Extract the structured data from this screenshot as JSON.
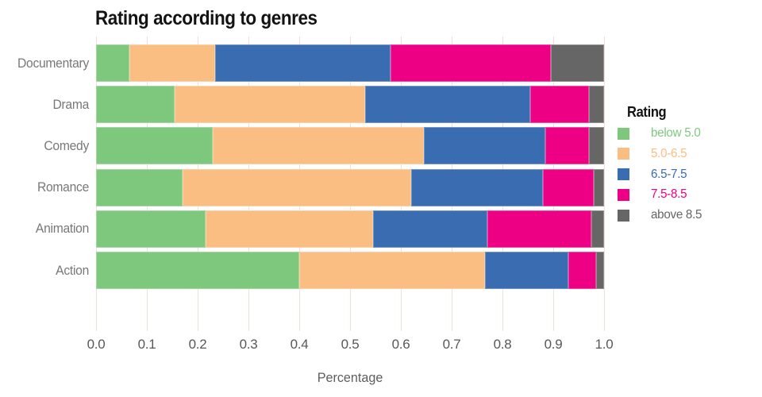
{
  "chart_data": {
    "type": "bar",
    "orientation": "horizontal-stacked",
    "title": "Rating according to genres",
    "xlabel": "Percentage",
    "ylabel": "",
    "categories": [
      "Documentary",
      "Drama",
      "Comedy",
      "Romance",
      "Animation",
      "Action"
    ],
    "series": [
      {
        "name": "below 5.0",
        "color": "#7ec87e",
        "values": [
          0.065,
          0.155,
          0.23,
          0.17,
          0.215,
          0.4
        ]
      },
      {
        "name": "5.0-6.5",
        "color": "#fbbe82",
        "values": [
          0.17,
          0.375,
          0.415,
          0.45,
          0.33,
          0.365
        ]
      },
      {
        "name": "6.5-7.5",
        "color": "#3a6cb2",
        "values": [
          0.345,
          0.325,
          0.24,
          0.26,
          0.225,
          0.165
        ]
      },
      {
        "name": "7.5-8.5",
        "color": "#ee0084",
        "values": [
          0.315,
          0.115,
          0.085,
          0.1,
          0.205,
          0.055
        ]
      },
      {
        "name": "above 8.5",
        "color": "#666666",
        "values": [
          0.105,
          0.03,
          0.03,
          0.02,
          0.025,
          0.015
        ]
      }
    ],
    "x_ticks": [
      "0.0",
      "0.1",
      "0.2",
      "0.3",
      "0.4",
      "0.5",
      "0.6",
      "0.7",
      "0.8",
      "0.9",
      "1.0"
    ],
    "xlim": [
      0,
      1
    ],
    "grid": true,
    "legend_title": "Rating",
    "legend_position": "right",
    "colors": {
      "background": "#ffffff",
      "gridline": "#f8dcdc",
      "title_text": "#131313",
      "axis_text": "#58585a",
      "category_text": "#77787a"
    }
  }
}
